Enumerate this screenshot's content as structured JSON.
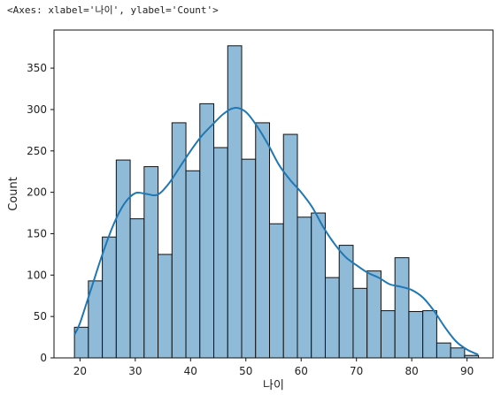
{
  "header": {
    "repr": "<Axes: xlabel='나이', ylabel='Count'>"
  },
  "colors": {
    "bar_fill": "#8fbbd9",
    "bar_stroke": "#111111",
    "kde_line": "#1f77b4"
  },
  "chart_data": {
    "type": "bar",
    "title": "",
    "xlabel": "나이",
    "ylabel": "Count",
    "xlim": [
      15.3,
      94.7
    ],
    "ylim": [
      0,
      396
    ],
    "xticks": [
      20,
      30,
      40,
      50,
      60,
      70,
      80,
      90
    ],
    "yticks": [
      0,
      50,
      100,
      150,
      200,
      250,
      300,
      350
    ],
    "bin_edges": [
      19.0,
      21.52,
      24.04,
      26.56,
      29.08,
      31.6,
      34.12,
      36.64,
      39.16,
      41.68,
      44.2,
      46.72,
      49.24,
      51.76,
      54.28,
      56.8,
      59.32,
      61.84,
      64.36,
      66.88,
      69.4,
      71.92,
      74.44,
      76.96,
      79.48,
      82.0,
      84.52,
      87.04,
      89.56,
      92.08
    ],
    "counts": [
      37,
      93,
      146,
      239,
      168,
      231,
      125,
      284,
      226,
      307,
      254,
      377,
      240,
      284,
      162,
      270,
      170,
      175,
      97,
      136,
      84,
      105,
      57,
      121,
      56,
      57,
      18,
      12,
      3
    ],
    "kde": {
      "x": [
        19,
        20,
        22,
        24,
        26,
        28,
        30,
        32,
        34,
        36,
        38,
        40,
        42,
        44,
        46,
        48,
        50,
        52,
        54,
        56,
        58,
        60,
        62,
        64,
        66,
        68,
        70,
        72,
        74,
        76,
        78,
        80,
        82,
        84,
        86,
        88,
        90,
        92
      ],
      "y": [
        28,
        42,
        83,
        124,
        160,
        186,
        199,
        198,
        197,
        210,
        230,
        250,
        268,
        282,
        295,
        302,
        297,
        280,
        258,
        233,
        215,
        200,
        182,
        158,
        138,
        122,
        112,
        103,
        97,
        89,
        86,
        82,
        73,
        57,
        37,
        20,
        10,
        4
      ]
    },
    "grid": false,
    "legend": "none"
  }
}
